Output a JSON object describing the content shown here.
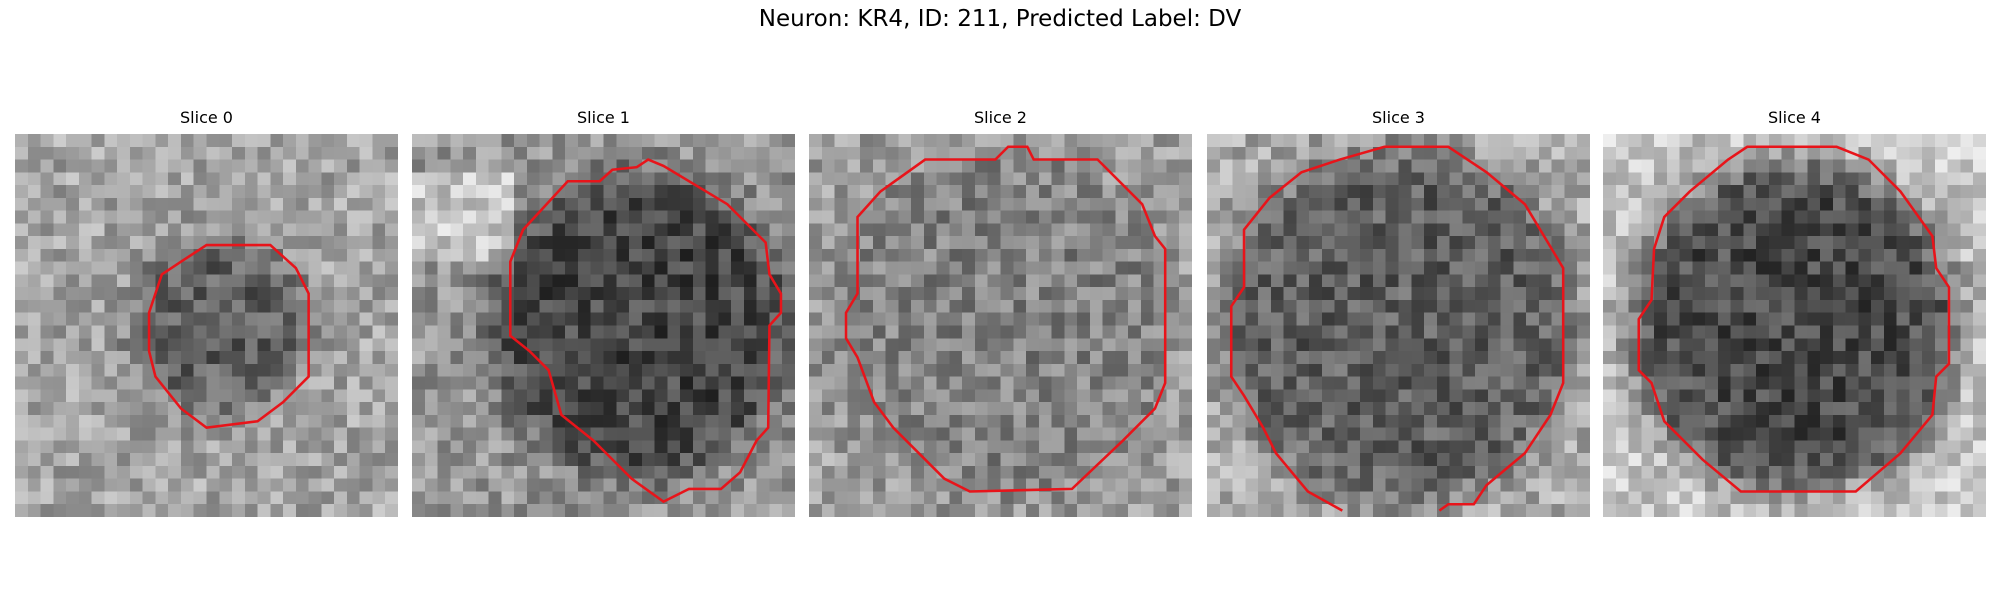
{
  "figure": {
    "title": "Neuron: KR4, ID: 211, Predicted Label: DV",
    "panels": [
      {
        "title": "Slice 0"
      },
      {
        "title": "Slice 1"
      },
      {
        "title": "Slice 2"
      },
      {
        "title": "Slice 3"
      },
      {
        "title": "Slice 4"
      }
    ]
  }
}
